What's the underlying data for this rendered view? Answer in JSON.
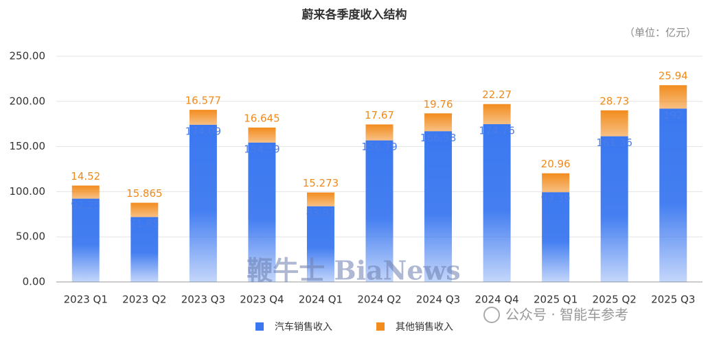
{
  "chart_data": {
    "type": "stacked_bar",
    "title": "蔚来各季度收入结构",
    "subtitle": "（单位：亿元）",
    "categories": [
      "2023 Q1",
      "2023 Q2",
      "2023 Q3",
      "2023 Q4",
      "2024 Q1",
      "2024 Q2",
      "2024 Q3",
      "2024 Q4",
      "2025 Q1",
      "2025 Q2",
      "2025 Q3"
    ],
    "series": [
      {
        "name": "汽车销售收入",
        "color": "#3b78f0",
        "values": [
          92.25,
          71.85,
          174.09,
          154.39,
          83.81,
          156.79,
          166.98,
          174.76,
          99.39,
          161.36,
          192
        ]
      },
      {
        "name": "其他销售收入",
        "color": "#f28c1e",
        "values": [
          14.52,
          15.865,
          16.577,
          16.645,
          15.273,
          17.67,
          19.76,
          22.27,
          20.96,
          28.73,
          25.94
        ]
      }
    ],
    "ylim": [
      0,
      250
    ],
    "yticks": [
      {
        "value": 0,
        "label": "0.00"
      },
      {
        "value": 50,
        "label": "50.00"
      },
      {
        "value": 100,
        "label": "100.00"
      },
      {
        "value": 150,
        "label": "150.00"
      },
      {
        "value": 200,
        "label": "200.00"
      },
      {
        "value": 250,
        "label": "250.00"
      }
    ],
    "grid": true,
    "legend": "bottom",
    "watermarks": [
      "鞭牛士 BiaNews",
      "公众号 · 智能车参考"
    ]
  }
}
